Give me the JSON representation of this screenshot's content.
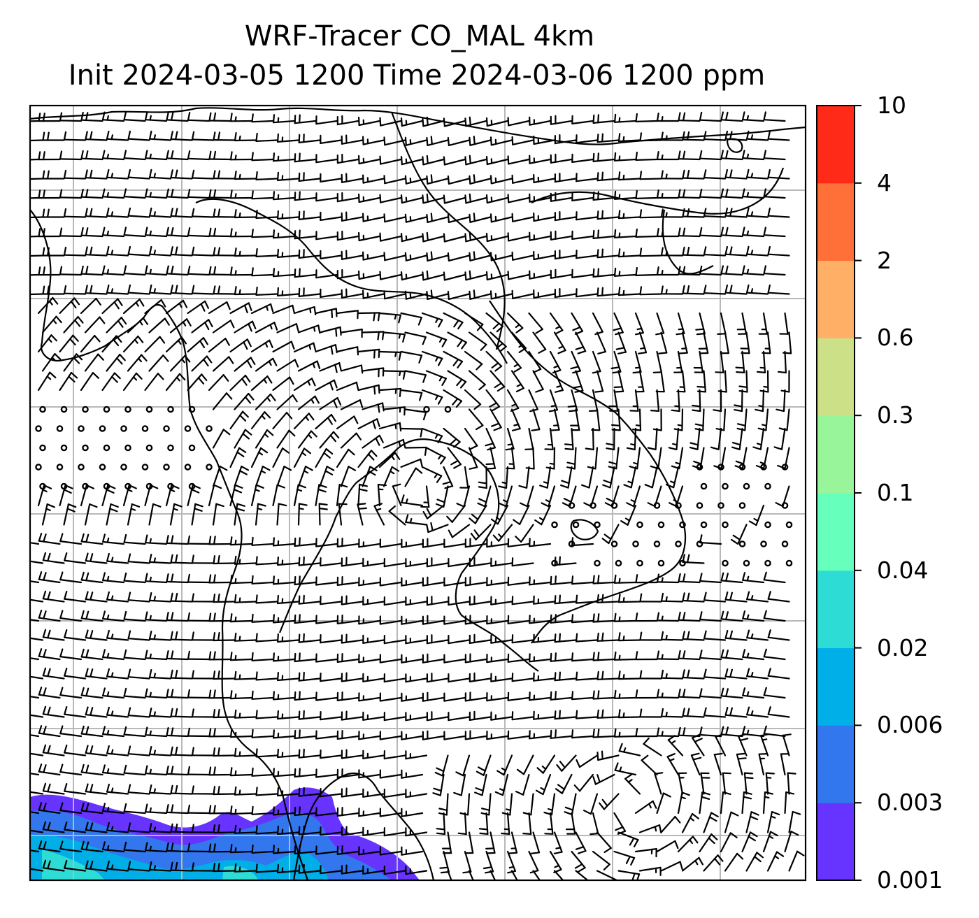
{
  "title": {
    "line1": "WRF-Tracer CO_MAL 4km",
    "line2": "Init 2024-03-05 1200 Time 2024-03-06 1200 ppm"
  },
  "colorbar": {
    "levels": [
      "0.001",
      "0.003",
      "0.006",
      "0.02",
      "0.04",
      "0.1",
      "0.3",
      "0.6",
      "2",
      "4",
      "10"
    ],
    "colors": [
      "#6633ff",
      "#3377ee",
      "#00aee8",
      "#2ddcd4",
      "#66ffbb",
      "#99f599",
      "#cce088",
      "#ffb066",
      "#ff7038",
      "#ff2a18"
    ]
  },
  "map": {
    "features": [
      "wind barbs",
      "coastlines",
      "lat/lon gridlines",
      "tracer concentration shading"
    ]
  }
}
